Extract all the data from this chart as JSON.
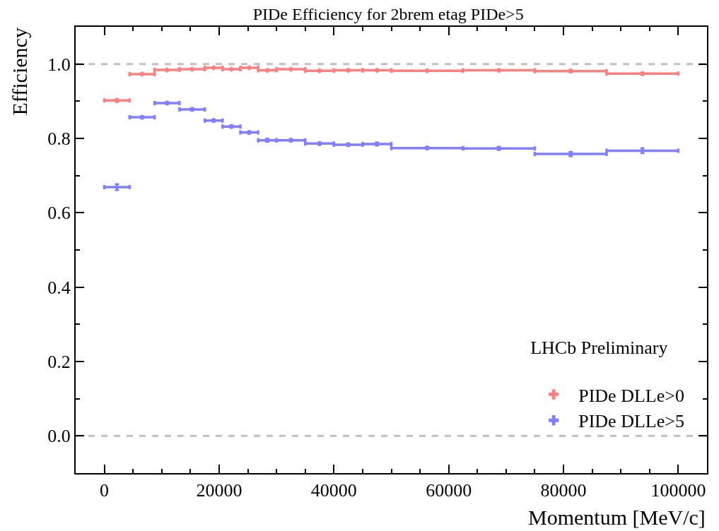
{
  "chart_data": {
    "type": "scatter",
    "title": "PIDe Efficiency for 2brem etag PIDe>5",
    "xlabel": "Momentum [MeV/c]",
    "ylabel": "Efficiency",
    "legend_title": "LHCb Preliminary",
    "x": [
      2200,
      6575,
      10925,
      15300,
      19050,
      22150,
      25250,
      28400,
      32500,
      37500,
      42500,
      47500,
      56250,
      68750,
      81250,
      93750
    ],
    "series": [
      {
        "name": "PIDe DLLe>0",
        "color": "#ff7f7f",
        "values": [
          0.902,
          0.973,
          0.984,
          0.986,
          0.99,
          0.986,
          0.99,
          0.983,
          0.986,
          0.982,
          0.983,
          0.983,
          0.982,
          0.983,
          0.981,
          0.974
        ],
        "errors": [
          0.004,
          0.002,
          0.002,
          0.002,
          0.002,
          0.002,
          0.002,
          0.002,
          0.002,
          0.002,
          0.002,
          0.002,
          0.002,
          0.002,
          0.003,
          0.003
        ],
        "xerrors": [
          2200,
          2175,
          2175,
          2200,
          1550,
          1550,
          1550,
          1600,
          2500,
          2500,
          2500,
          2500,
          6250,
          6250,
          6250,
          6250
        ]
      },
      {
        "name": "PIDe DLLe>5",
        "color": "#7f7fff",
        "values": [
          0.669,
          0.857,
          0.895,
          0.878,
          0.848,
          0.832,
          0.816,
          0.795,
          0.795,
          0.786,
          0.783,
          0.785,
          0.774,
          0.773,
          0.758,
          0.767
        ],
        "errors": [
          0.008,
          0.003,
          0.003,
          0.003,
          0.003,
          0.003,
          0.003,
          0.004,
          0.003,
          0.003,
          0.003,
          0.004,
          0.003,
          0.004,
          0.006,
          0.007
        ],
        "xerrors": [
          2200,
          2175,
          2175,
          2200,
          1550,
          1550,
          1550,
          1600,
          2500,
          2500,
          2500,
          2500,
          6250,
          6250,
          6250,
          6250
        ]
      }
    ],
    "xlim": [
      -5000,
      105000
    ],
    "xticks": [
      0,
      20000,
      40000,
      60000,
      80000,
      100000
    ],
    "ylim": [
      -0.1,
      1.1
    ],
    "yticks": [
      {
        "value": 0,
        "label": "0.0"
      },
      {
        "value": 0.2,
        "label": "0.2"
      },
      {
        "value": 0.4,
        "label": "0.4"
      },
      {
        "value": 0.6,
        "label": "0.6"
      },
      {
        "value": 0.8,
        "label": "0.8"
      },
      {
        "value": 1,
        "label": "1.0"
      }
    ],
    "ref_lines": [
      {
        "axis": "y",
        "value": 0,
        "color": "#c0c0c0",
        "line_style": "dashed"
      },
      {
        "axis": "y",
        "value": 1,
        "color": "#c0c0c0",
        "line_style": "dashed"
      }
    ],
    "marker": "cross",
    "grid": false,
    "legend": "bottom right"
  }
}
